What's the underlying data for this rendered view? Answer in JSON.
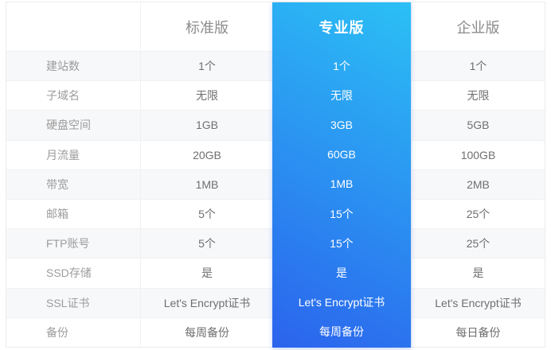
{
  "table": {
    "plans": [
      {
        "name": "标准版",
        "highlighted": false
      },
      {
        "name": "专业版",
        "highlighted": true
      },
      {
        "name": "企业版",
        "highlighted": false
      }
    ],
    "rows": [
      {
        "feature": "建站数",
        "values": [
          "1个",
          "1个",
          "1个"
        ]
      },
      {
        "feature": "子域名",
        "values": [
          "无限",
          "无限",
          "无限"
        ]
      },
      {
        "feature": "硬盘空间",
        "values": [
          "1GB",
          "3GB",
          "5GB"
        ]
      },
      {
        "feature": "月流量",
        "values": [
          "20GB",
          "60GB",
          "100GB"
        ]
      },
      {
        "feature": "带宽",
        "values": [
          "1MB",
          "1MB",
          "2MB"
        ]
      },
      {
        "feature": "邮箱",
        "values": [
          "5个",
          "15个",
          "25个"
        ]
      },
      {
        "feature": "FTP账号",
        "values": [
          "5个",
          "15个",
          "25个"
        ]
      },
      {
        "feature": "SSD存储",
        "values": [
          "是",
          "是",
          "是"
        ]
      },
      {
        "feature": "SSL证书",
        "values": [
          "Let's Encrypt证书",
          "Let's Encrypt证书",
          "Let's Encrypt证书"
        ]
      },
      {
        "feature": "备份",
        "values": [
          "每周备份",
          "每周备份",
          "每日备份"
        ]
      }
    ]
  },
  "colors": {
    "highlight_gradient_top": "#2bc0f5",
    "highlight_gradient_bottom": "#2b63ed",
    "stripe_row": "#f7f8fa",
    "table_border": "#ececec",
    "grid_line": "#f1f1f3",
    "feature_text": "#9c9c9c",
    "value_text": "#6f6f6f",
    "plan_header_text": "#8c8c8c",
    "highlight_text": "#ffffff"
  }
}
